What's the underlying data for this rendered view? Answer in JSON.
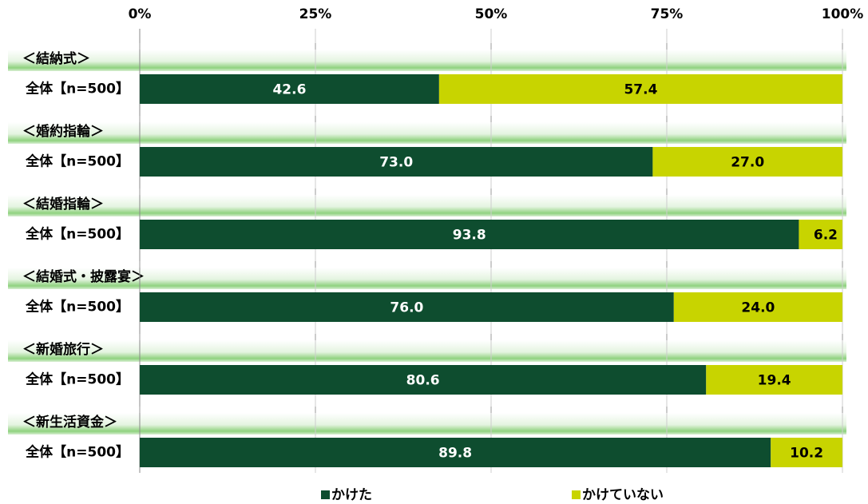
{
  "chart_data": {
    "type": "stacked-bar-100",
    "groups": [
      "＜結納式＞",
      "＜婚約指輪＞",
      "＜結婚指輪＞",
      "＜結婚式・披露宴＞",
      "＜新婚旅行＞",
      "＜新生活資金＞"
    ],
    "categories": [
      "全体【n=500】",
      "全体【n=500】",
      "全体【n=500】",
      "全体【n=500】",
      "全体【n=500】",
      "全体【n=500】"
    ],
    "series": [
      {
        "name": "かけた",
        "color": "#0e4d2f",
        "values": [
          42.6,
          73.0,
          93.8,
          76.0,
          80.6,
          89.8
        ],
        "value_labels": [
          "42.6",
          "73.0",
          "93.8",
          "76.0",
          "80.6",
          "89.8"
        ]
      },
      {
        "name": "かけていない",
        "color": "#c8d400",
        "values": [
          57.4,
          27.0,
          6.2,
          24.0,
          19.4,
          10.2
        ],
        "value_labels": [
          "57.4",
          "27.0",
          "6.2",
          "24.0",
          "19.4",
          "10.2"
        ]
      }
    ],
    "xlim": [
      0,
      100
    ],
    "xticks": [
      {
        "value": 0,
        "label": "0%"
      },
      {
        "value": 25,
        "label": "25%"
      },
      {
        "value": 50,
        "label": "50%"
      },
      {
        "value": 75,
        "label": "75%"
      },
      {
        "value": 100,
        "label": "100%"
      }
    ],
    "grid": true,
    "legend": "bottom"
  }
}
